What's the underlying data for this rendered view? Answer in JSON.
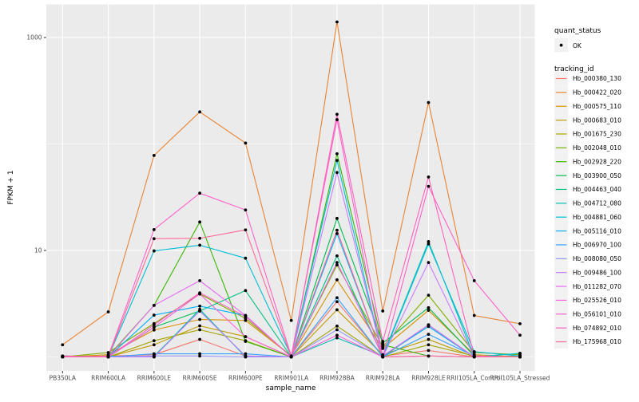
{
  "figure": {
    "background": "#FFFFFF",
    "panel_background": "#EBEBEB",
    "grid_color": "#FFFFFF",
    "tick_color": "#333333",
    "point_color": "#000000"
  },
  "chart_data": {
    "type": "line",
    "title": "",
    "xlabel": "sample_name",
    "ylabel": "FPKM + 1",
    "y_scale": "log10",
    "y_ticks": [
      "10",
      "1000"
    ],
    "y_tick_values": [
      10,
      1000
    ],
    "y_minor_values": [
      1,
      100
    ],
    "ylim_log": [
      0.87,
      3.3
    ],
    "grid": "on",
    "legend_position": "right",
    "categories": [
      "PB350LA",
      "RRIM600LA",
      "RRIM600LE",
      "RRIM600SE",
      "RRIM600PE",
      "RRIM901LA",
      "RRIM928BA",
      "RRIM928LA",
      "RRIM928LE",
      "RRII105LA_Control",
      "RRII105LA_Stressed"
    ],
    "legend": {
      "quant_status_title": "quant_status",
      "quant_status_items": [
        {
          "label": "OK",
          "shape": "point",
          "color": "#000000"
        }
      ],
      "tracking_id_title": "tracking_id"
    },
    "series": [
      {
        "name": "Hb_000380_130",
        "color": "#F8766D",
        "values": [
          1.0,
          1.02,
          1.05,
          1.46,
          1.02,
          1.0,
          3.3,
          1.02,
          1.15,
          1.0,
          1.0
        ]
      },
      {
        "name": "Hb_000422_020",
        "color": "#EA8331",
        "values": [
          1.3,
          2.65,
          78,
          200,
          102,
          2.2,
          1400,
          2.7,
          245,
          2.45,
          2.05
        ]
      },
      {
        "name": "Hb_000575_110",
        "color": "#D89000",
        "values": [
          1.0,
          1.05,
          1.79,
          2.25,
          2.2,
          1.02,
          5.3,
          1.2,
          2.74,
          1.05,
          1.0
        ]
      },
      {
        "name": "Hb_000683_010",
        "color": "#C09B00",
        "values": [
          1.02,
          1.0,
          1.3,
          1.96,
          1.55,
          1.0,
          2.77,
          1.05,
          1.46,
          1.0,
          1.02
        ]
      },
      {
        "name": "Hb_001675_230",
        "color": "#A3A500",
        "values": [
          1.0,
          1.0,
          1.42,
          1.8,
          1.42,
          1.0,
          1.95,
          1.0,
          1.3,
          1.02,
          1.0
        ]
      },
      {
        "name": "Hb_002048_010",
        "color": "#7CAE00",
        "values": [
          1.0,
          1.1,
          2.06,
          3.9,
          2.3,
          1.02,
          7.3,
          1.25,
          3.8,
          1.1,
          1.05
        ]
      },
      {
        "name": "Hb_002928_220",
        "color": "#39B600",
        "values": [
          1.0,
          1.02,
          3.05,
          18.5,
          1.4,
          1.0,
          81,
          1.3,
          1.02,
          1.0,
          1.0
        ]
      },
      {
        "name": "Hb_003900_050",
        "color": "#00BB4E",
        "values": [
          1.02,
          1.0,
          1.9,
          2.7,
          1.02,
          1.0,
          20,
          1.35,
          2.9,
          1.02,
          1.0
        ]
      },
      {
        "name": "Hb_004463_040",
        "color": "#00C087",
        "values": [
          1.0,
          1.0,
          1.02,
          2.7,
          4.2,
          1.0,
          8.9,
          1.0,
          2.0,
          1.0,
          1.08
        ]
      },
      {
        "name": "Hb_004712_080",
        "color": "#00C0AF",
        "values": [
          1.0,
          1.02,
          1.0,
          2.8,
          1.0,
          1.0,
          1.51,
          1.02,
          12.1,
          1.0,
          1.08
        ]
      },
      {
        "name": "Hb_004881_060",
        "color": "#00BCD8",
        "values": [
          1.0,
          1.0,
          9.9,
          11.2,
          8.46,
          1.02,
          70,
          1.0,
          11.5,
          1.12,
          1.02
        ]
      },
      {
        "name": "Hb_005116_010",
        "color": "#00B0F6",
        "values": [
          1.0,
          1.0,
          2.47,
          3.0,
          2.45,
          1.0,
          14.4,
          1.02,
          1.93,
          1.0,
          1.0
        ]
      },
      {
        "name": "Hb_006970_100",
        "color": "#35A2FF",
        "values": [
          1.02,
          1.0,
          1.07,
          1.07,
          1.07,
          1.0,
          3.6,
          1.0,
          1.63,
          1.02,
          1.0
        ]
      },
      {
        "name": "Hb_008080_050",
        "color": "#9590FF",
        "values": [
          1.0,
          1.0,
          1.02,
          1.02,
          1.0,
          1.0,
          1.8,
          1.0,
          1.02,
          1.0,
          1.0
        ]
      },
      {
        "name": "Hb_009486_100",
        "color": "#C77CFF",
        "values": [
          1.0,
          1.0,
          1.0,
          2.7,
          1.02,
          1.0,
          54,
          1.0,
          7.7,
          1.0,
          1.0
        ]
      },
      {
        "name": "Hb_011282_070",
        "color": "#E76BF3",
        "values": [
          1.0,
          1.0,
          3.05,
          5.2,
          2.45,
          1.0,
          7.7,
          1.02,
          2.0,
          1.0,
          1.0
        ]
      },
      {
        "name": "Hb_025526_010",
        "color": "#FA62DB",
        "values": [
          1.0,
          1.0,
          1.9,
          3.9,
          1.55,
          1.0,
          1.6,
          1.0,
          1.02,
          1.0,
          1.0
        ]
      },
      {
        "name": "Hb_056101_010",
        "color": "#FF61CC",
        "values": [
          1.0,
          1.02,
          15.7,
          34.5,
          24,
          1.02,
          169,
          1.0,
          40,
          5.2,
          1.6
        ]
      },
      {
        "name": "Hb_074892_010",
        "color": "#FF62BC",
        "values": [
          1.0,
          1.0,
          2.0,
          4.0,
          2.4,
          1.0,
          190,
          1.4,
          49,
          1.02,
          1.0
        ]
      },
      {
        "name": "Hb_175968_010",
        "color": "#FF6A98",
        "values": [
          1.02,
          1.0,
          12.9,
          13.0,
          15.6,
          1.0,
          15.5,
          1.0,
          1.02,
          1.0,
          1.0
        ]
      }
    ]
  }
}
